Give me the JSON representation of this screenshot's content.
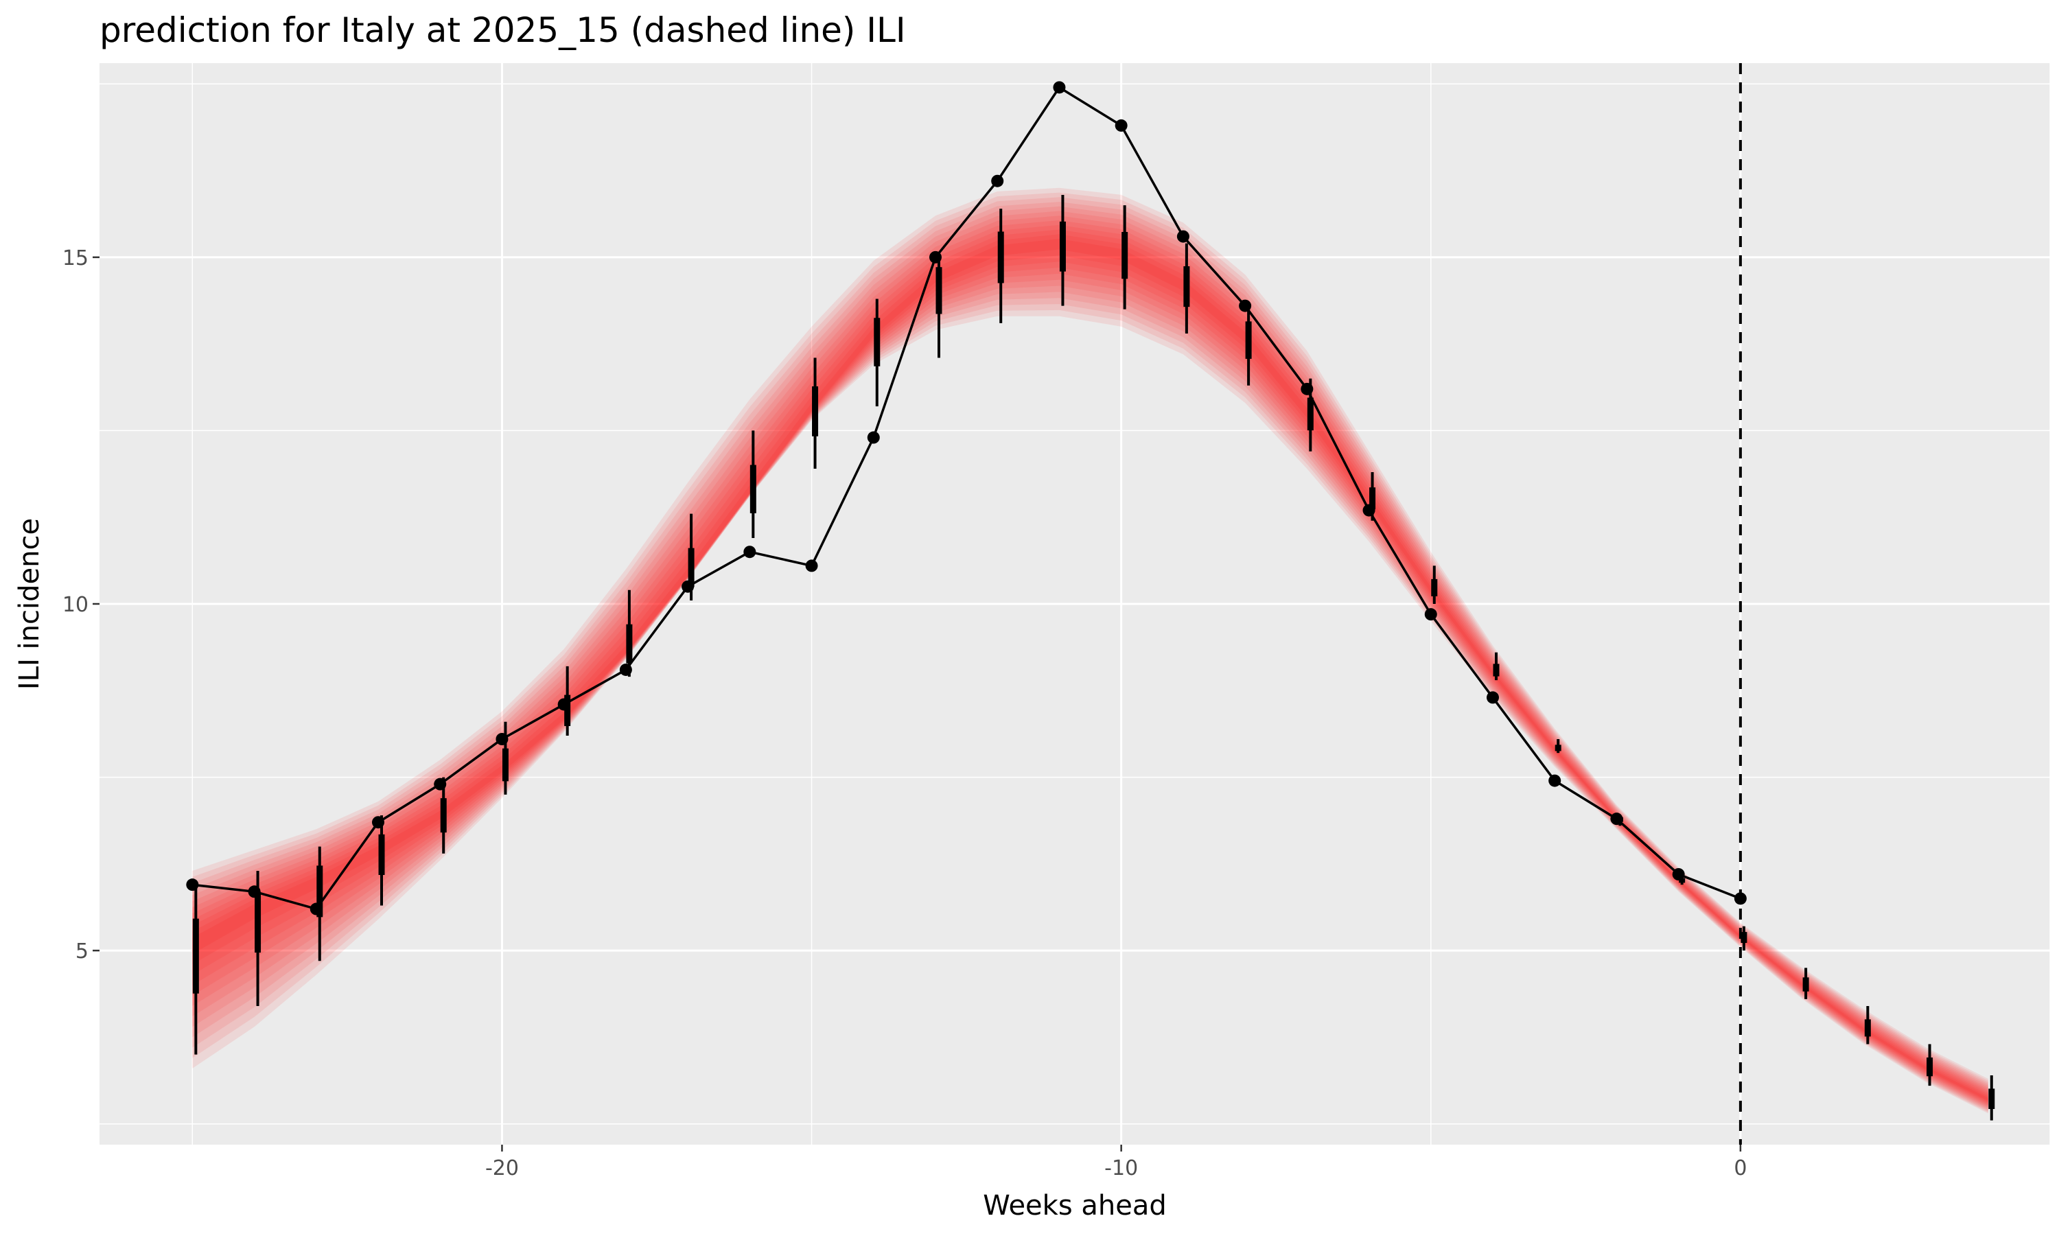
{
  "chart_data": {
    "type": "line",
    "title": "prediction for Italy at 2025_15 (dashed line) ILI",
    "xlabel": "Weeks ahead",
    "ylabel": "ILI incidence",
    "xlim": [
      -26.5,
      5
    ],
    "ylim": [
      2.2,
      17.8
    ],
    "x_ticks": [
      -20,
      -10,
      0
    ],
    "x_tick_labels": [
      "-20",
      "-10",
      "0"
    ],
    "x_minor_ticks": [
      -25,
      -15,
      -5,
      5
    ],
    "y_ticks": [
      5,
      10,
      15
    ],
    "y_tick_labels": [
      "5",
      "10",
      "15"
    ],
    "y_minor_ticks": [
      2.5,
      7.5,
      12.5,
      17.5
    ],
    "grid": true,
    "legend": "none",
    "reference_line": {
      "x": 0,
      "style": "dashed",
      "color": "#000000"
    },
    "band_color": "#ff0000",
    "observed": {
      "x": [
        -25,
        -24,
        -23,
        -22,
        -21,
        -20,
        -19,
        -18,
        -17,
        -16,
        -15,
        -14,
        -13,
        -12,
        -11,
        -10,
        -9,
        -8,
        -7,
        -6,
        -5,
        -4,
        -3,
        -2,
        -1,
        0
      ],
      "y": [
        5.95,
        5.85,
        5.6,
        6.85,
        7.4,
        8.05,
        8.55,
        9.05,
        10.25,
        10.75,
        10.55,
        12.4,
        15.0,
        16.1,
        17.45,
        16.9,
        15.3,
        14.3,
        13.1,
        11.35,
        9.85,
        8.65,
        7.45,
        6.9,
        6.1,
        5.75
      ]
    },
    "forecast": {
      "x": [
        -25,
        -24,
        -23,
        -22,
        -21,
        -20,
        -19,
        -18,
        -17,
        -16,
        -15,
        -14,
        -13,
        -12,
        -11,
        -10,
        -9,
        -8,
        -7,
        -6,
        -5,
        -4,
        -3,
        -2,
        -1,
        0,
        1,
        2,
        3,
        4
      ],
      "median": [
        5.1,
        5.6,
        6.0,
        6.45,
        6.95,
        7.6,
        8.35,
        9.3,
        10.4,
        11.6,
        12.8,
        13.9,
        14.7,
        15.1,
        15.2,
        15.05,
        14.6,
        13.85,
        12.75,
        11.5,
        10.2,
        9.0,
        7.9,
        6.9,
        6.0,
        5.2,
        4.5,
        3.85,
        3.3,
        2.85
      ],
      "lower": [
        3.3,
        3.9,
        4.65,
        5.45,
        6.3,
        7.2,
        8.15,
        9.2,
        10.35,
        11.55,
        12.65,
        13.45,
        13.95,
        14.15,
        14.15,
        14.0,
        13.6,
        12.9,
        11.95,
        10.9,
        9.75,
        8.65,
        7.65,
        6.75,
        5.85,
        5.05,
        4.3,
        3.65,
        3.1,
        2.65
      ],
      "upper": [
        6.15,
        6.45,
        6.75,
        7.15,
        7.75,
        8.45,
        9.35,
        10.5,
        11.75,
        12.95,
        14.0,
        14.95,
        15.6,
        15.95,
        16.0,
        15.9,
        15.5,
        14.75,
        13.65,
        12.2,
        10.75,
        9.4,
        8.2,
        7.1,
        6.2,
        5.4,
        4.75,
        4.15,
        3.6,
        3.15
      ],
      "interval_lower": [
        3.5,
        4.2,
        4.85,
        5.65,
        6.4,
        7.25,
        8.1,
        8.95,
        10.05,
        10.95,
        11.95,
        12.85,
        13.55,
        14.05,
        14.3,
        14.25,
        13.9,
        13.15,
        12.2,
        11.2,
        10.0,
        8.9,
        7.85,
        6.8,
        5.95,
        5.0,
        4.3,
        3.65,
        3.05,
        2.55
      ],
      "interval_upper": [
        5.9,
        6.15,
        6.5,
        6.95,
        7.5,
        8.3,
        9.1,
        10.2,
        11.3,
        12.5,
        13.55,
        14.4,
        15.05,
        15.7,
        15.9,
        15.75,
        15.2,
        14.35,
        13.25,
        11.9,
        10.55,
        9.3,
        8.05,
        6.95,
        6.1,
        5.35,
        4.75,
        4.2,
        3.65,
        3.2
      ]
    }
  }
}
